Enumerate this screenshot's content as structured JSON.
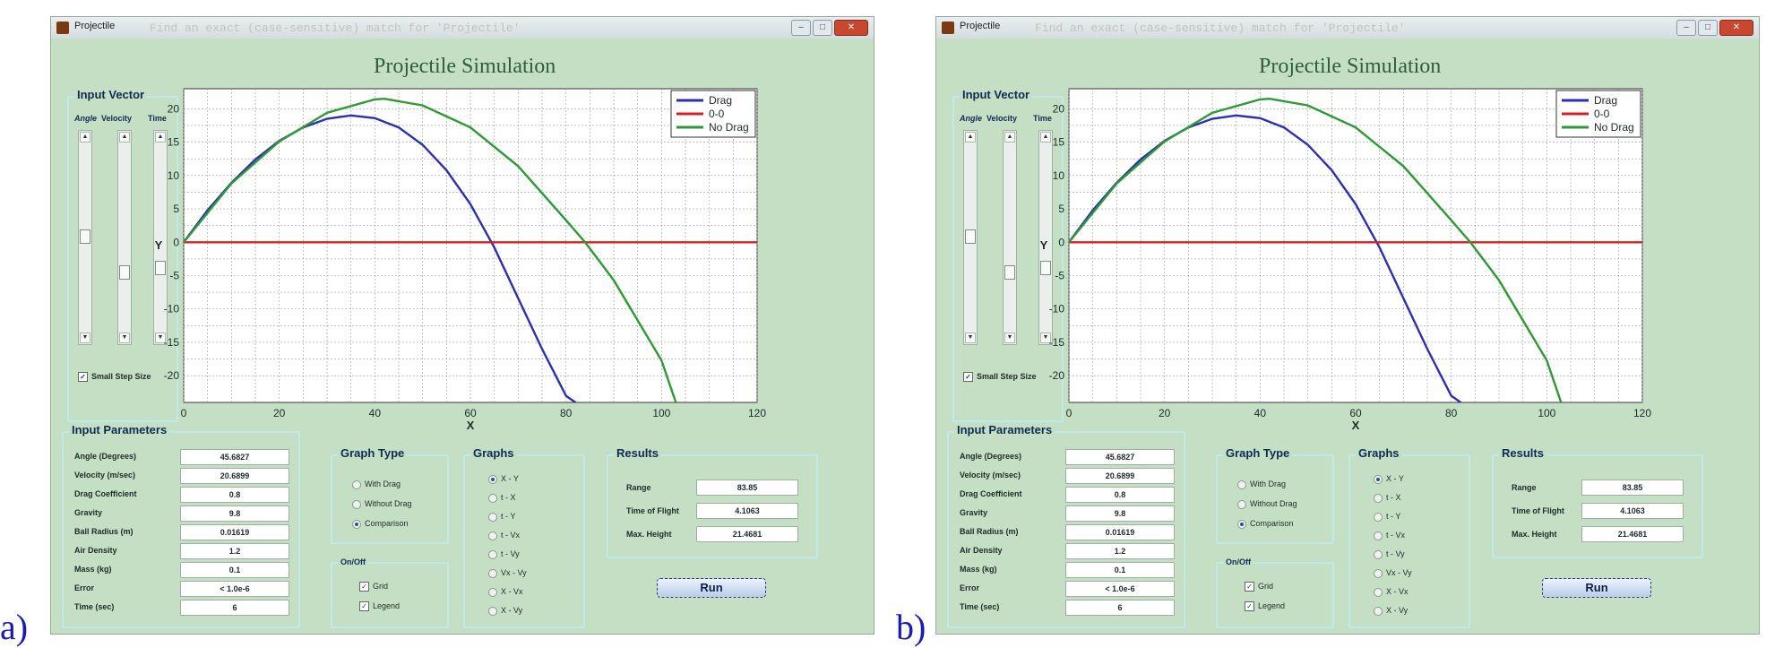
{
  "captions": [
    "a)",
    "b)"
  ],
  "window": {
    "title": "Projectile",
    "ghost_text": "Find an exact (case-sensitive) match for 'Projectile'",
    "minimize_label": "–",
    "maximize_label": "□",
    "close_label": "✕"
  },
  "app_title": "Projectile Simulation",
  "input_vector": {
    "title": "Input Vector",
    "labels": [
      "Angle",
      "Velocity",
      "Time"
    ],
    "small_step_label": "Small Step Size",
    "small_step_checked": true,
    "arrow_up": "▲",
    "arrow_down": "▼"
  },
  "input_parameters": {
    "title": "Input Parameters",
    "rows": [
      {
        "label": "Angle (Degrees)",
        "value": "45.6827"
      },
      {
        "label": "Velocity (m/sec)",
        "value": "20.6899"
      },
      {
        "label": "Drag Coefficient",
        "value": "0.8"
      },
      {
        "label": "Gravity",
        "value": "9.8"
      },
      {
        "label": "Ball Radius (m)",
        "value": "0.01619"
      },
      {
        "label": "Air Density",
        "value": "1.2"
      },
      {
        "label": "Mass (kg)",
        "value": "0.1"
      },
      {
        "label": "Error",
        "value": "< 1.0e-6"
      },
      {
        "label": "Time (sec)",
        "value": "6"
      }
    ]
  },
  "graph_type": {
    "title": "Graph Type",
    "options": [
      "With Drag",
      "Without Drag",
      "Comparison"
    ],
    "selected": "Comparison"
  },
  "onoff": {
    "title": "On/Off",
    "grid_label": "Grid",
    "legend_label": "Legend",
    "grid_checked": true,
    "legend_checked": true,
    "check_mark": "✓"
  },
  "graphs": {
    "title": "Graphs",
    "options": [
      "X - Y",
      "t - X",
      "t - Y",
      "t - Vx",
      "t - Vy",
      "Vx - Vy",
      "X - Vx",
      "X - Vy"
    ],
    "selected": "X - Y"
  },
  "results": {
    "title": "Results",
    "rows": [
      {
        "label": "Range",
        "value": "83.85"
      },
      {
        "label": "Time of Flight",
        "value": "4.1063"
      },
      {
        "label": "Max. Height",
        "value": "21.4681"
      }
    ]
  },
  "run_label": "Run",
  "colors": {
    "window_bg": "#c5dfc4",
    "drag": "#2a2fb5",
    "ideal": "#d42020",
    "nodrag": "#2e9a34",
    "panel_border": "#bfe9ea"
  },
  "chart_data": {
    "type": "line",
    "title": "",
    "xlabel": "X",
    "ylabel": "Y",
    "xlim": [
      0,
      120
    ],
    "ylim": [
      -24,
      23
    ],
    "xticks": [
      0,
      20,
      40,
      60,
      80,
      100,
      120
    ],
    "yticks": [
      -20,
      -15,
      -10,
      -5,
      0,
      5,
      10,
      15,
      20
    ],
    "grid": true,
    "legend_position": "top-right",
    "series": [
      {
        "name": "Drag",
        "color": "#2a2fb5",
        "x": [
          0,
          5,
          10,
          15,
          20,
          25,
          30,
          35,
          40,
          45,
          50,
          55,
          60,
          65,
          70,
          75,
          80,
          82
        ],
        "y": [
          0,
          4.8,
          8.9,
          12.4,
          15.2,
          17.2,
          18.5,
          19.0,
          18.6,
          17.2,
          14.6,
          10.8,
          5.7,
          -0.8,
          -8.4,
          -16.0,
          -23.0,
          -24.0
        ]
      },
      {
        "name": "0-0",
        "color": "#d42020",
        "x": [
          0,
          120
        ],
        "y": [
          0,
          0
        ]
      },
      {
        "name": "No Drag",
        "color": "#2e9a34",
        "x": [
          0,
          10,
          20,
          30,
          40,
          42,
          50,
          60,
          70,
          80,
          84,
          90,
          100,
          103
        ],
        "y": [
          0,
          8.8,
          15.1,
          19.4,
          21.4,
          21.5,
          20.5,
          17.2,
          11.4,
          3.3,
          0,
          -5.7,
          -17.7,
          -24.0
        ]
      }
    ]
  }
}
